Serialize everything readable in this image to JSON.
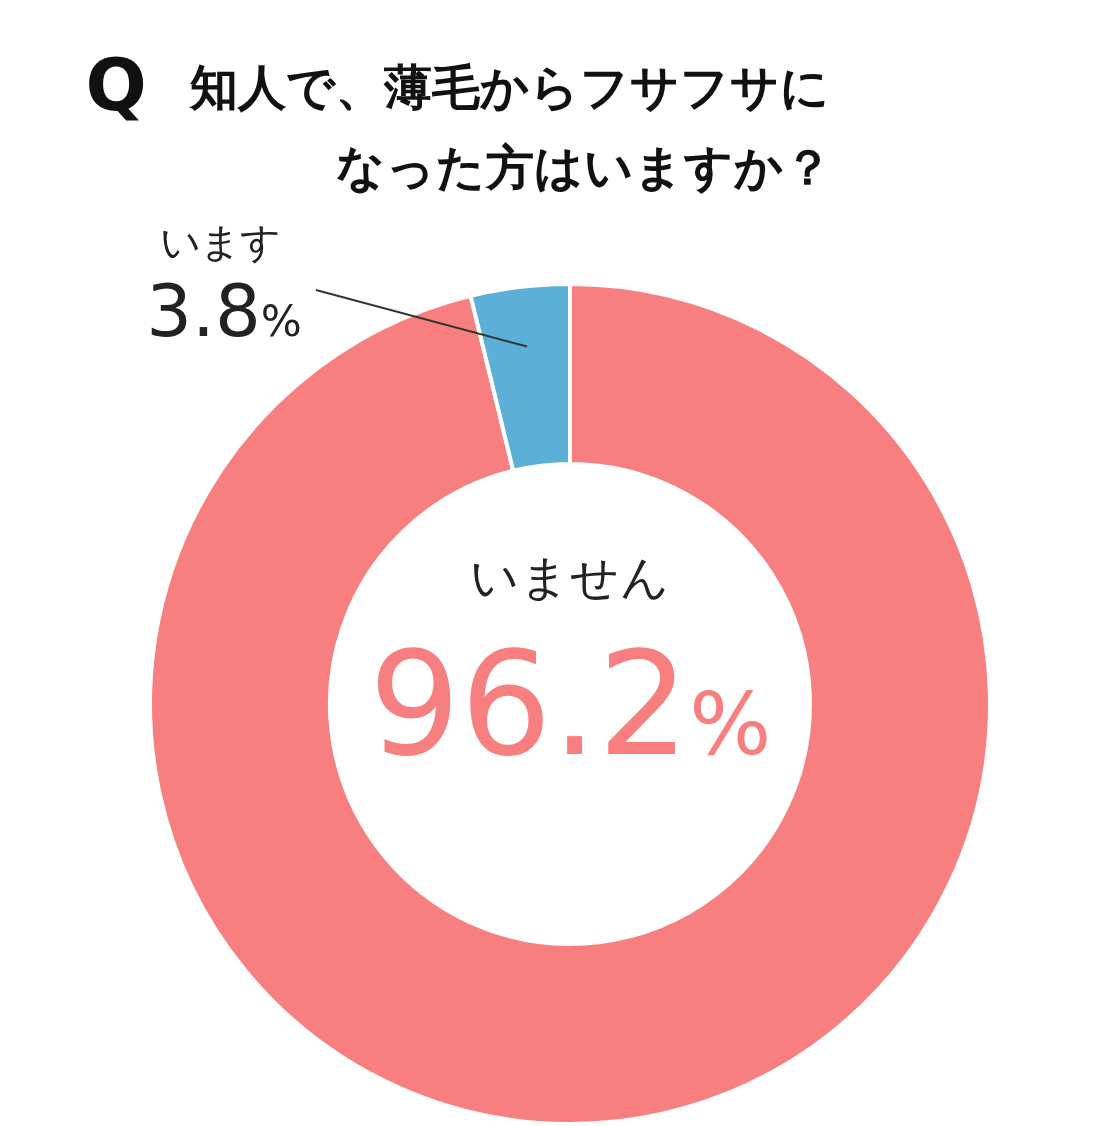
{
  "chart_data": {
    "type": "donut",
    "title": "知人で、薄毛からフサフサになった方はいますか？",
    "annotations": [
      "Q"
    ],
    "categories": [
      "いません",
      "います"
    ],
    "values": [
      96.2,
      3.8
    ],
    "value_labels": [
      "96.2%",
      "3.8%"
    ],
    "colors": [
      "#f77f80",
      "#5cb0d8"
    ]
  }
}
